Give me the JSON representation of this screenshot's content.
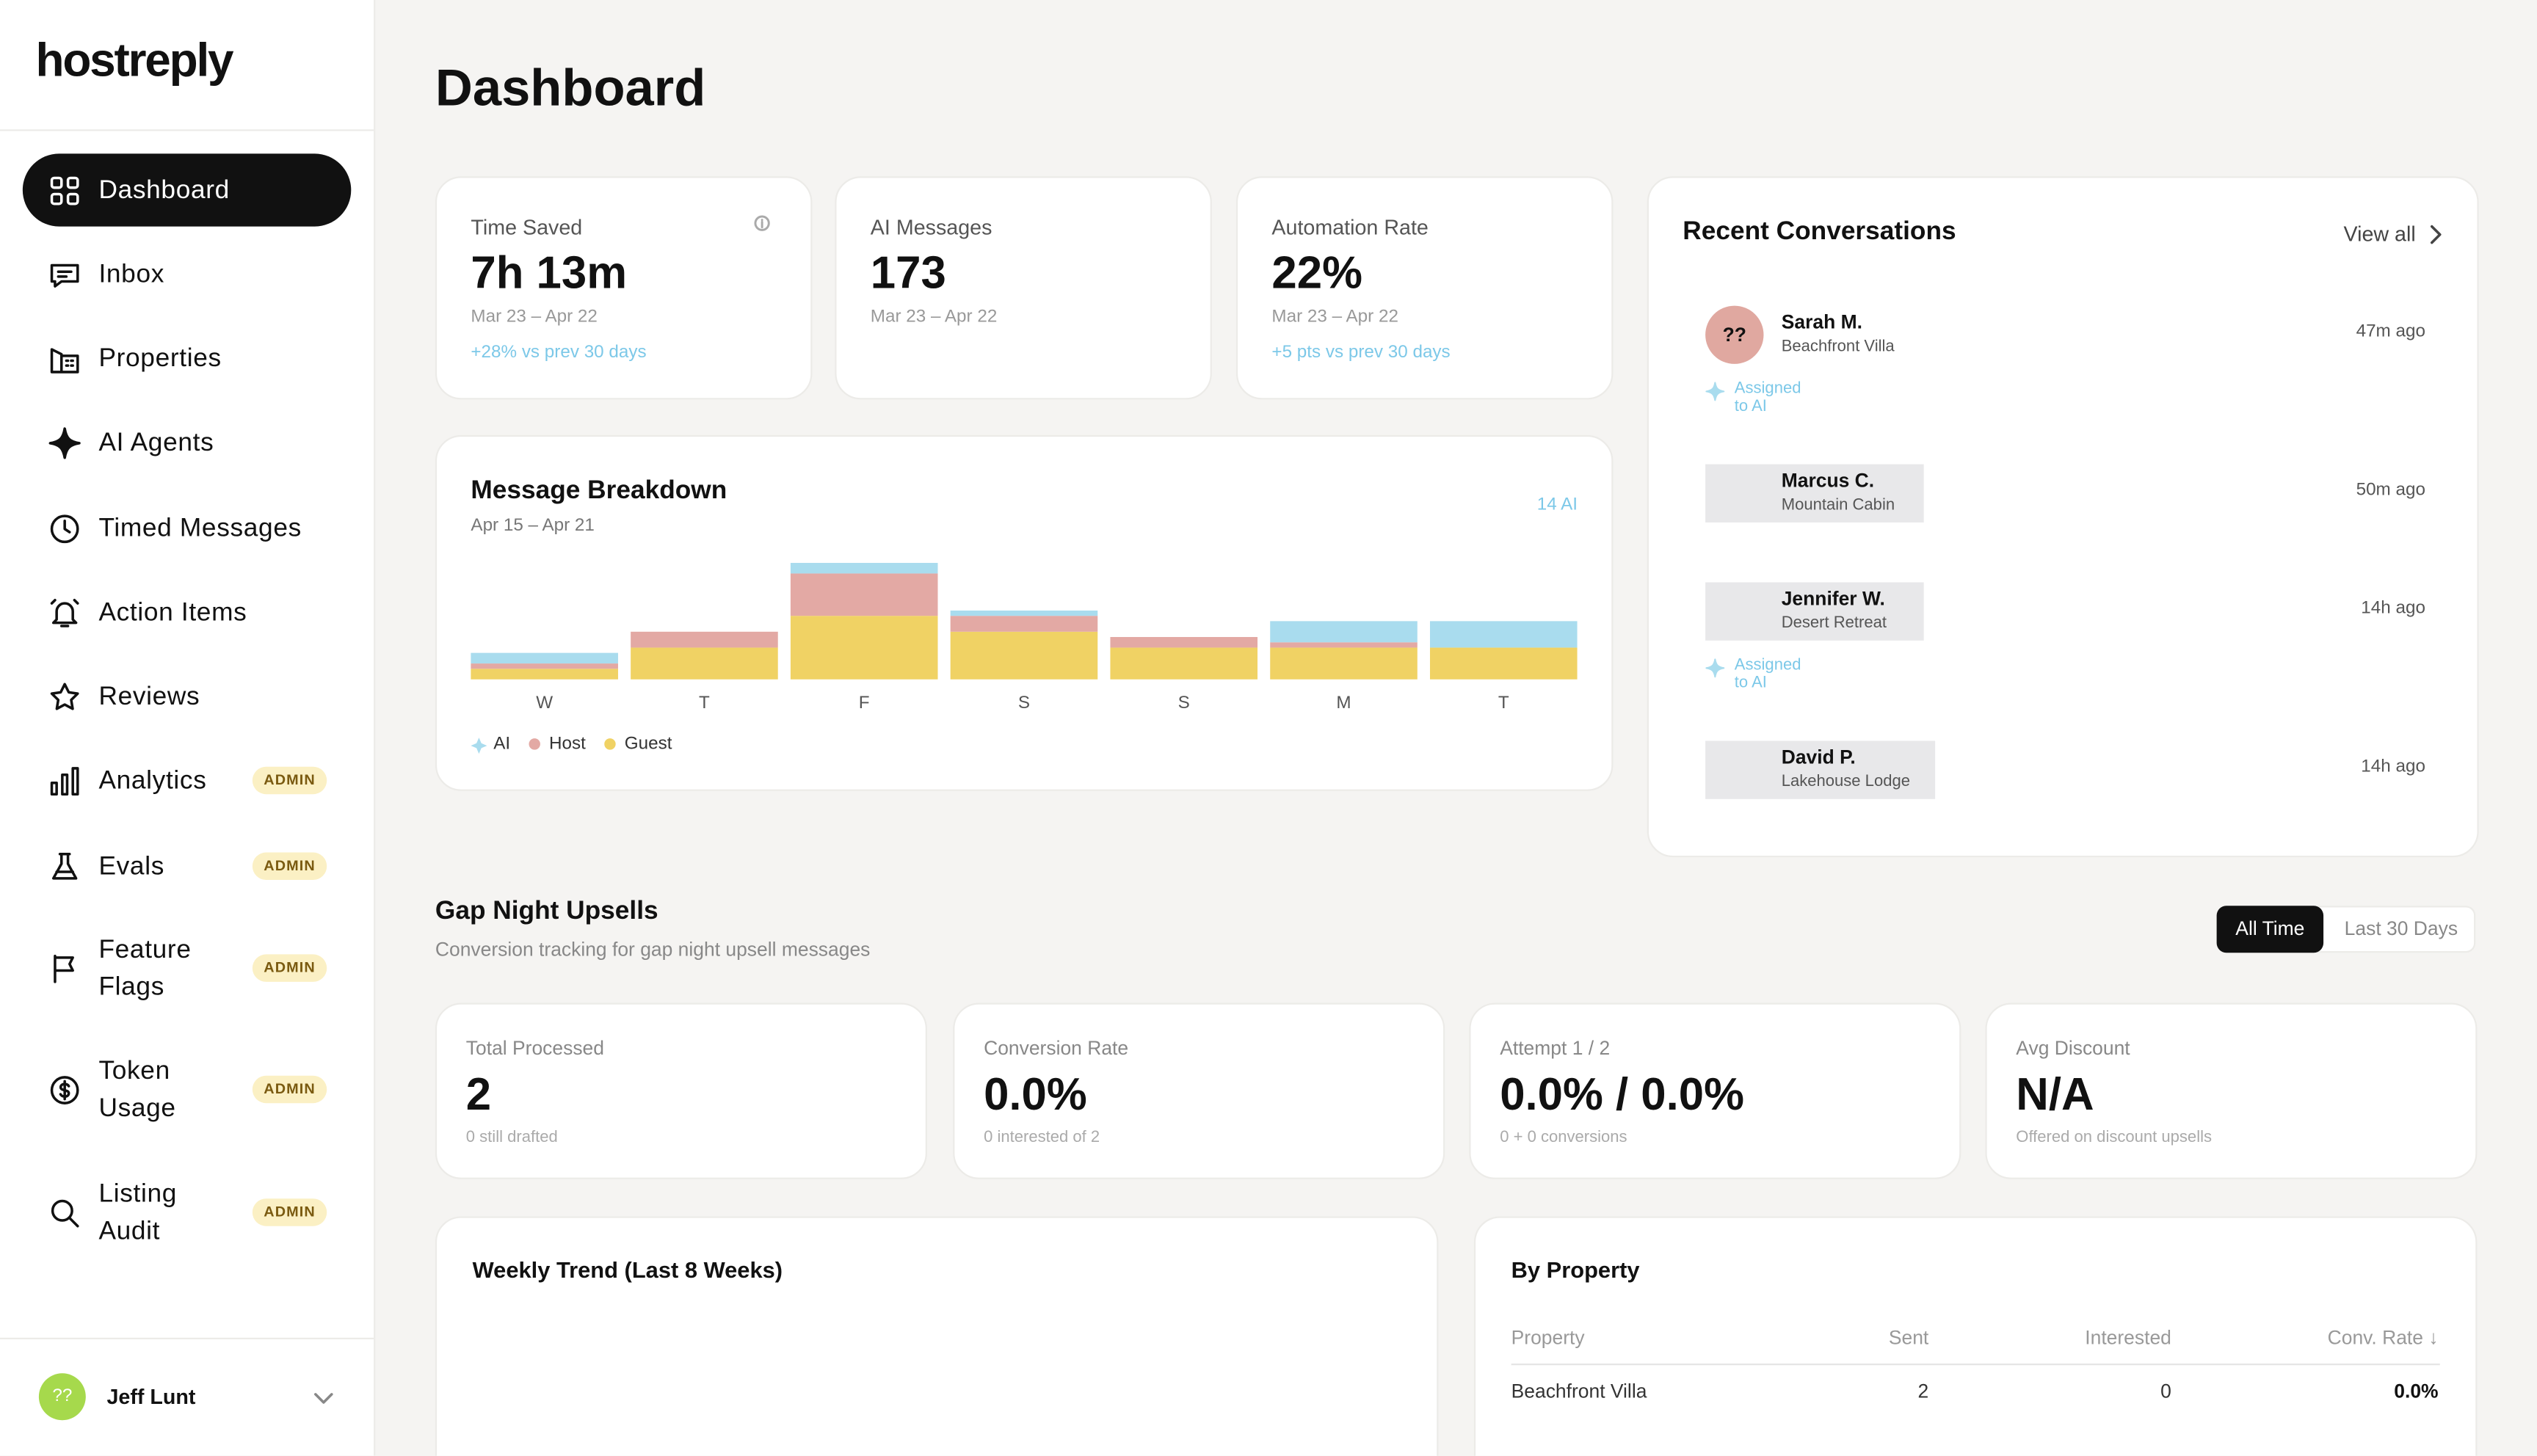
{
  "brand": "hostreply",
  "nav": [
    {
      "label": "Dashboard"
    },
    {
      "label": "Inbox"
    },
    {
      "label": "Properties"
    },
    {
      "label": "AI Agents"
    },
    {
      "label": "Timed Messages"
    },
    {
      "label": "Action Items"
    },
    {
      "label": "Reviews"
    },
    {
      "label": "Analytics",
      "badge": "ADMIN"
    },
    {
      "label": "Evals",
      "badge": "ADMIN"
    },
    {
      "label": "Feature Flags",
      "badge": "ADMIN"
    },
    {
      "label": "Token Usage",
      "badge": "ADMIN"
    },
    {
      "label": "Listing Audit",
      "badge": "ADMIN"
    }
  ],
  "user": {
    "avatar": "??",
    "name": "Jeff Lunt"
  },
  "page_title": "Dashboard",
  "stats": [
    {
      "label": "Time Saved",
      "value": "7h 13m",
      "range": "Mar 23 – Apr 22",
      "change": "+28% vs prev 30 days"
    },
    {
      "label": "AI Messages",
      "value": "173",
      "range": "Mar 23 – Apr 22"
    },
    {
      "label": "Automation Rate",
      "value": "22%",
      "range": "Mar 23 – Apr 22",
      "change": "+5 pts vs prev 30 days"
    }
  ],
  "message_breakdown": {
    "title": "Message Breakdown",
    "range": "Apr 15 – Apr 21",
    "ai_total": "14 AI",
    "chart_data": {
      "type": "bar",
      "stacked": true,
      "categories": [
        "W",
        "T",
        "F",
        "S",
        "S",
        "M",
        "T"
      ],
      "series": [
        {
          "name": "Guest",
          "color": "#f0d264",
          "values": [
            2,
            6,
            12,
            9,
            6,
            6,
            6
          ]
        },
        {
          "name": "Host",
          "color": "#e3a9a4",
          "values": [
            1,
            3,
            8,
            3,
            2,
            1,
            0
          ]
        },
        {
          "name": "AI",
          "color": "#a9dcee",
          "values": [
            2,
            0,
            2,
            1,
            0,
            4,
            5
          ]
        }
      ]
    }
  },
  "recent": {
    "title": "Recent Conversations",
    "view_all": "View all",
    "items": [
      {
        "avatar": "??",
        "name": "Sarah M.",
        "property": "Beachfront Villa",
        "time": "47m ago",
        "tag": "Assigned to AI"
      },
      {
        "name": "Marcus C.",
        "property": "Mountain Cabin",
        "time": "50m ago"
      },
      {
        "name": "Jennifer W.",
        "property": "Desert Retreat",
        "time": "14h ago",
        "tag": "Assigned to AI"
      },
      {
        "name": "David P.",
        "property": "Lakehouse Lodge",
        "time": "14h ago"
      }
    ]
  },
  "gap": {
    "title": "Gap Night Upsells",
    "subtitle": "Conversion tracking for gap night upsell messages",
    "tabs": [
      "All Time",
      "Last 30 Days"
    ],
    "metrics": [
      {
        "label": "Total Processed",
        "value": "2",
        "note": "0 still drafted"
      },
      {
        "label": "Conversion Rate",
        "value": "0.0%",
        "note": "0 interested of 2"
      },
      {
        "label": "Attempt 1 / 2",
        "value": "0.0% / 0.0%",
        "note": "0 + 0 conversions"
      },
      {
        "label": "Avg Discount",
        "value": "N/A",
        "note": "Offered on discount upsells"
      }
    ],
    "weekly_title": "Weekly Trend (Last 8 Weeks)",
    "by_property": {
      "title": "By Property",
      "columns": [
        "Property",
        "Sent",
        "Interested",
        "Conv. Rate ↓"
      ],
      "rows": [
        [
          "Beachfront Villa",
          2,
          0,
          "0.0%"
        ]
      ]
    }
  }
}
